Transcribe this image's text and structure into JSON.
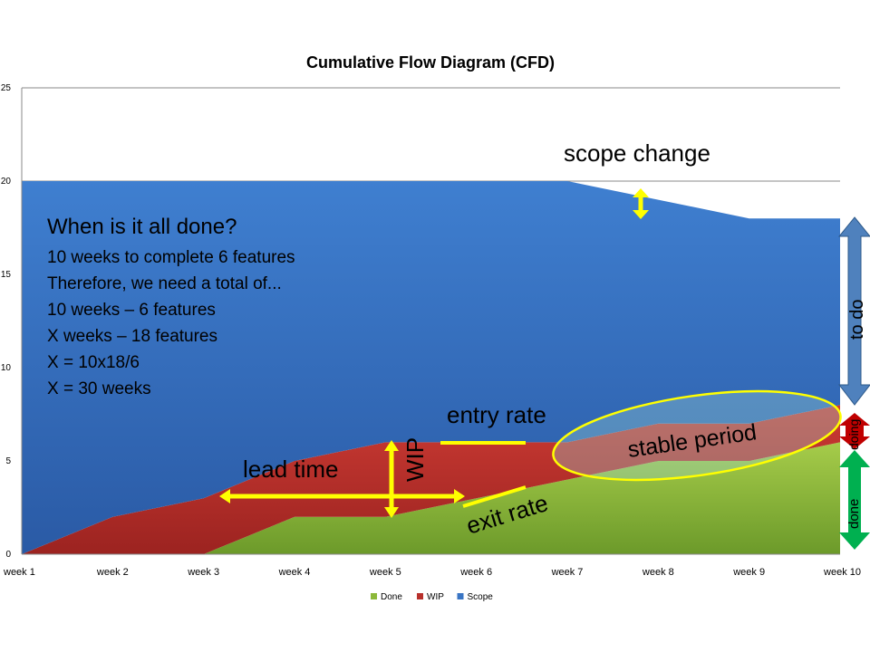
{
  "chart_data": {
    "type": "area",
    "stacked": true,
    "title": "Cumulative Flow Diagram (CFD)",
    "xlabel": "",
    "ylabel": "",
    "categories": [
      "week 1",
      "week 2",
      "week 3",
      "week 4",
      "week 5",
      "week 6",
      "week 7",
      "week 8",
      "week 9",
      "week 10"
    ],
    "ylim": [
      0,
      25
    ],
    "yticks": [
      0,
      5,
      10,
      15,
      20,
      25
    ],
    "grid": true,
    "legend_position": "bottom",
    "series": [
      {
        "name": "Done",
        "color": "#8cb83a",
        "values": [
          0,
          0,
          0,
          2,
          2,
          3,
          4,
          5,
          5,
          6
        ]
      },
      {
        "name": "WIP",
        "color": "#b8302c",
        "values": [
          0,
          2,
          3,
          3,
          4,
          3,
          2,
          2,
          2,
          2
        ]
      },
      {
        "name": "Scope",
        "color": "#3a75c4",
        "values": [
          20,
          18,
          17,
          15,
          14,
          14,
          14,
          12,
          11,
          10
        ]
      }
    ]
  },
  "annotations": {
    "question_title": "When is it all done?",
    "question_lines": [
      "10 weeks to complete 6 features",
      "Therefore, we need a total of...",
      "10 weeks – 6 features",
      "X weeks – 18 features",
      "X = 10x18/6",
      "X = 30 weeks"
    ],
    "scope_change": "scope change",
    "entry_rate": "entry rate",
    "exit_rate": "exit rate",
    "lead_time": "lead time",
    "wip": "WIP",
    "stable_period": "stable period",
    "to_do": "to do",
    "doing": "doing",
    "done": "done"
  },
  "colors": {
    "arrow_yellow": "#ffff00",
    "todo_arrow": "#4f81bd",
    "doing_arrow": "#c00000",
    "done_arrow": "#00b050"
  }
}
